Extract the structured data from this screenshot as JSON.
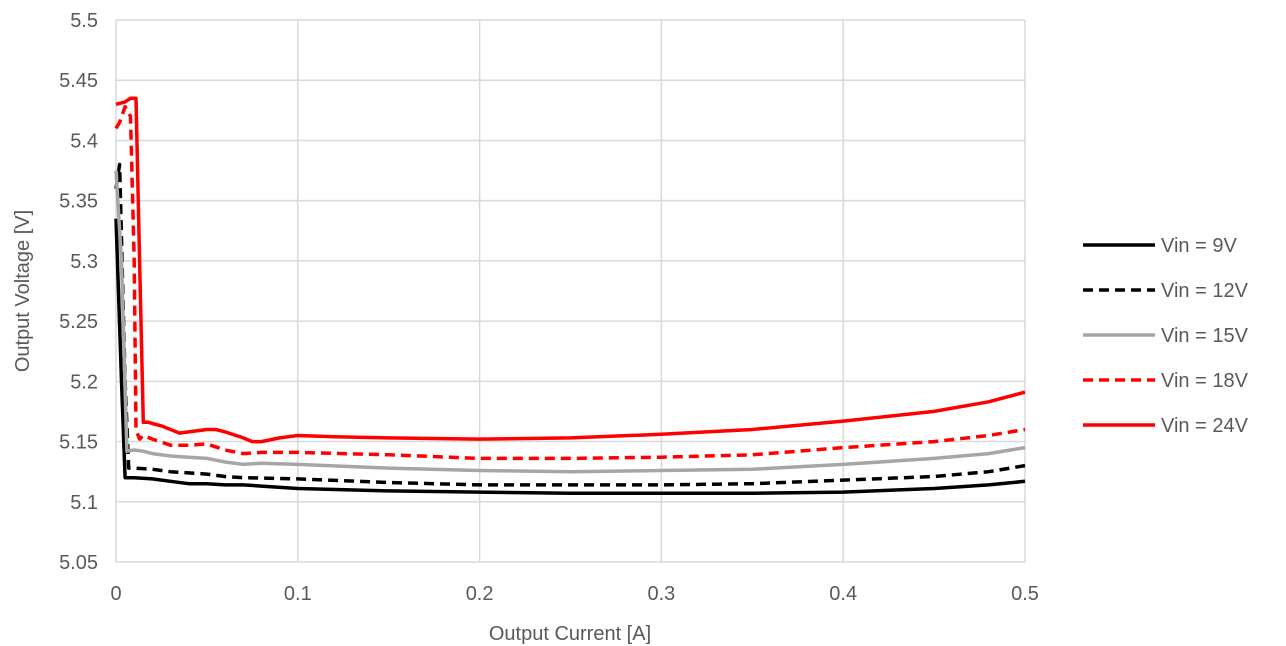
{
  "chart_data": {
    "type": "line",
    "xlabel": "Output Current [A]",
    "ylabel": "Output Voltage [V]",
    "xlim": [
      0,
      0.5
    ],
    "ylim": [
      5.05,
      5.5
    ],
    "x_ticks": [
      "0",
      "0.1",
      "0.2",
      "0.3",
      "0.4",
      "0.5"
    ],
    "y_ticks": [
      "5.05",
      "5.1",
      "5.15",
      "5.2",
      "5.25",
      "5.3",
      "5.35",
      "5.4",
      "5.45",
      "5.5"
    ],
    "grid": true,
    "legend_position": "right",
    "series": [
      {
        "name": "Vin = 9V",
        "color": "#000000",
        "style": "solid",
        "points": [
          [
            0,
            5.335
          ],
          [
            0.003,
            5.2
          ],
          [
            0.005,
            5.12
          ],
          [
            0.01,
            5.12
          ],
          [
            0.02,
            5.119
          ],
          [
            0.03,
            5.117
          ],
          [
            0.04,
            5.115
          ],
          [
            0.05,
            5.115
          ],
          [
            0.06,
            5.114
          ],
          [
            0.07,
            5.114
          ],
          [
            0.08,
            5.113
          ],
          [
            0.1,
            5.111
          ],
          [
            0.15,
            5.109
          ],
          [
            0.2,
            5.108
          ],
          [
            0.25,
            5.107
          ],
          [
            0.3,
            5.107
          ],
          [
            0.35,
            5.107
          ],
          [
            0.4,
            5.108
          ],
          [
            0.45,
            5.111
          ],
          [
            0.48,
            5.114
          ],
          [
            0.5,
            5.117
          ]
        ]
      },
      {
        "name": "Vin = 12V",
        "color": "#000000",
        "style": "dashed",
        "points": [
          [
            0,
            5.36
          ],
          [
            0.002,
            5.38
          ],
          [
            0.005,
            5.2
          ],
          [
            0.007,
            5.128
          ],
          [
            0.01,
            5.128
          ],
          [
            0.02,
            5.127
          ],
          [
            0.03,
            5.125
          ],
          [
            0.04,
            5.124
          ],
          [
            0.05,
            5.123
          ],
          [
            0.06,
            5.121
          ],
          [
            0.07,
            5.12
          ],
          [
            0.1,
            5.119
          ],
          [
            0.15,
            5.116
          ],
          [
            0.2,
            5.114
          ],
          [
            0.25,
            5.114
          ],
          [
            0.3,
            5.114
          ],
          [
            0.35,
            5.115
          ],
          [
            0.4,
            5.118
          ],
          [
            0.45,
            5.121
          ],
          [
            0.48,
            5.125
          ],
          [
            0.5,
            5.13
          ]
        ]
      },
      {
        "name": "Vin = 15V",
        "color": "#a6a6a6",
        "style": "solid",
        "points": [
          [
            0,
            5.375
          ],
          [
            0.003,
            5.3
          ],
          [
            0.006,
            5.142
          ],
          [
            0.01,
            5.143
          ],
          [
            0.015,
            5.142
          ],
          [
            0.02,
            5.14
          ],
          [
            0.03,
            5.138
          ],
          [
            0.04,
            5.137
          ],
          [
            0.05,
            5.136
          ],
          [
            0.06,
            5.133
          ],
          [
            0.07,
            5.131
          ],
          [
            0.08,
            5.132
          ],
          [
            0.1,
            5.131
          ],
          [
            0.15,
            5.128
          ],
          [
            0.2,
            5.126
          ],
          [
            0.25,
            5.125
          ],
          [
            0.3,
            5.126
          ],
          [
            0.35,
            5.127
          ],
          [
            0.4,
            5.131
          ],
          [
            0.45,
            5.136
          ],
          [
            0.48,
            5.14
          ],
          [
            0.5,
            5.145
          ]
        ]
      },
      {
        "name": "Vin = 18V",
        "color": "#ff0000",
        "style": "dashed",
        "points": [
          [
            0,
            5.41
          ],
          [
            0.002,
            5.415
          ],
          [
            0.005,
            5.428
          ],
          [
            0.008,
            5.42
          ],
          [
            0.01,
            5.3
          ],
          [
            0.011,
            5.16
          ],
          [
            0.013,
            5.152
          ],
          [
            0.015,
            5.155
          ],
          [
            0.02,
            5.152
          ],
          [
            0.03,
            5.147
          ],
          [
            0.04,
            5.147
          ],
          [
            0.05,
            5.148
          ],
          [
            0.06,
            5.143
          ],
          [
            0.07,
            5.14
          ],
          [
            0.08,
            5.141
          ],
          [
            0.1,
            5.141
          ],
          [
            0.15,
            5.139
          ],
          [
            0.2,
            5.136
          ],
          [
            0.25,
            5.136
          ],
          [
            0.3,
            5.137
          ],
          [
            0.35,
            5.139
          ],
          [
            0.4,
            5.145
          ],
          [
            0.45,
            5.15
          ],
          [
            0.48,
            5.155
          ],
          [
            0.5,
            5.16
          ]
        ]
      },
      {
        "name": "Vin = 24V",
        "color": "#ff0000",
        "style": "solid",
        "points": [
          [
            0,
            5.43
          ],
          [
            0.005,
            5.432
          ],
          [
            0.008,
            5.435
          ],
          [
            0.011,
            5.435
          ],
          [
            0.013,
            5.3
          ],
          [
            0.015,
            5.166
          ],
          [
            0.018,
            5.166
          ],
          [
            0.02,
            5.165
          ],
          [
            0.025,
            5.163
          ],
          [
            0.03,
            5.16
          ],
          [
            0.035,
            5.157
          ],
          [
            0.04,
            5.158
          ],
          [
            0.05,
            5.16
          ],
          [
            0.055,
            5.16
          ],
          [
            0.06,
            5.158
          ],
          [
            0.07,
            5.153
          ],
          [
            0.075,
            5.15
          ],
          [
            0.08,
            5.15
          ],
          [
            0.09,
            5.153
          ],
          [
            0.1,
            5.155
          ],
          [
            0.12,
            5.154
          ],
          [
            0.15,
            5.153
          ],
          [
            0.2,
            5.152
          ],
          [
            0.25,
            5.153
          ],
          [
            0.3,
            5.156
          ],
          [
            0.35,
            5.16
          ],
          [
            0.4,
            5.167
          ],
          [
            0.45,
            5.175
          ],
          [
            0.48,
            5.183
          ],
          [
            0.5,
            5.191
          ]
        ]
      }
    ]
  }
}
